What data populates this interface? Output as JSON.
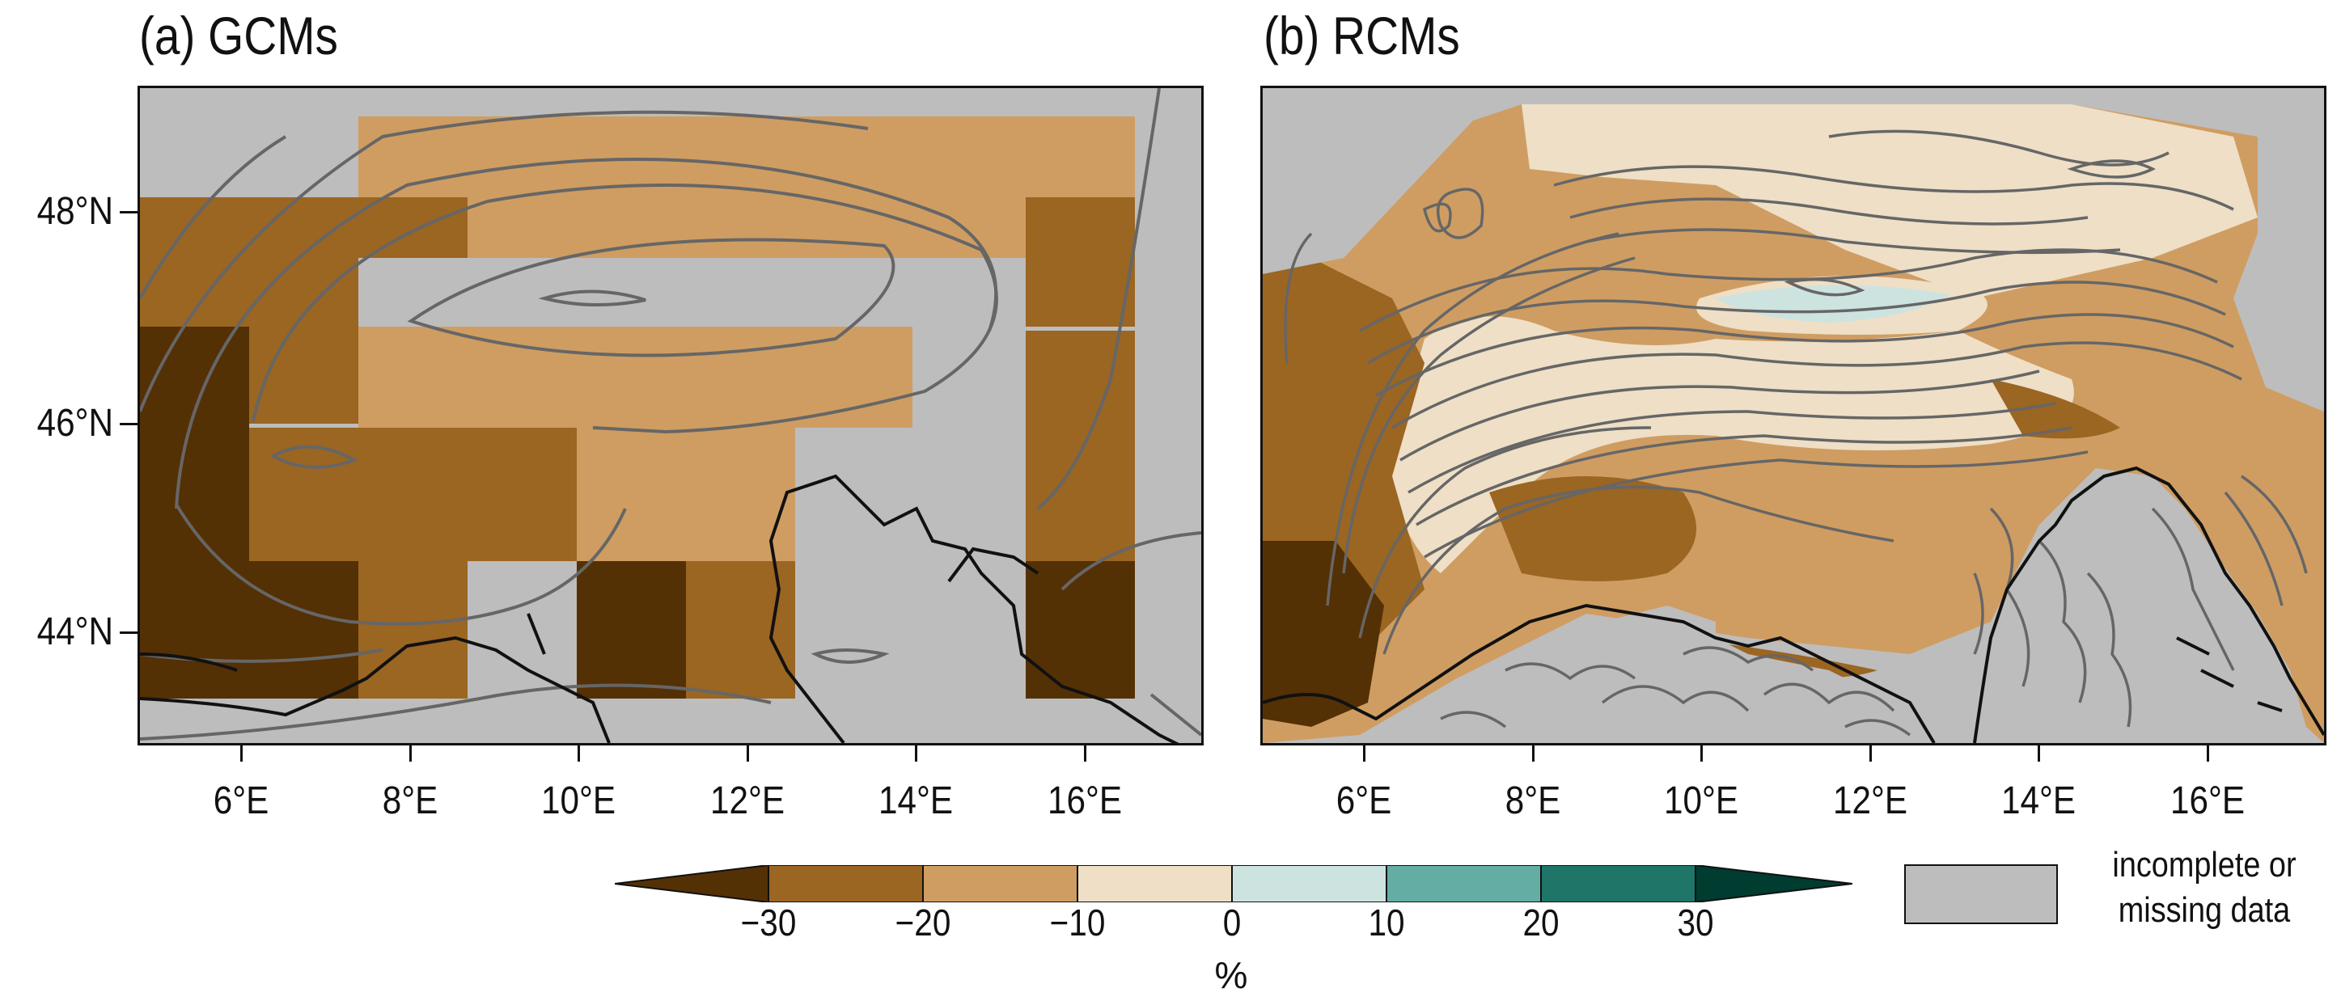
{
  "panels": {
    "a": {
      "title": "(a) GCMs"
    },
    "b": {
      "title": "(b) RCMs"
    }
  },
  "axes": {
    "lat_ticks": [
      "48°N",
      "46°N",
      "44°N"
    ],
    "lat_values": [
      48,
      46,
      44
    ],
    "lon_ticks": [
      "6°E",
      "8°E",
      "10°E",
      "12°E",
      "14°E",
      "16°E"
    ],
    "lon_values": [
      6,
      8,
      10,
      12,
      14,
      16
    ],
    "lon_range": [
      4.75,
      17.5
    ],
    "lat_range": [
      42.9,
      49.1
    ]
  },
  "colorbar": {
    "units": "%",
    "tick_labels": [
      "−30",
      "−20",
      "−10",
      "0",
      "10",
      "20",
      "30"
    ],
    "bins": [
      {
        "range": "< -30",
        "color": "#543005"
      },
      {
        "range": "-30 to -20",
        "color": "#9b6522"
      },
      {
        "range": "-20 to -10",
        "color": "#cf9d62"
      },
      {
        "range": "-10 to 0",
        "color": "#eedfc6"
      },
      {
        "range": "0 to 10",
        "color": "#cde3e0"
      },
      {
        "range": "10 to 20",
        "color": "#64ada5"
      },
      {
        "range": "20 to 30",
        "color": "#1f7668"
      },
      {
        "range": "> 30",
        "color": "#003c30"
      }
    ]
  },
  "legend": {
    "missing_label_line1": "incomplete or",
    "missing_label_line2": "missing data",
    "missing_color": "#bdbdbd"
  }
}
